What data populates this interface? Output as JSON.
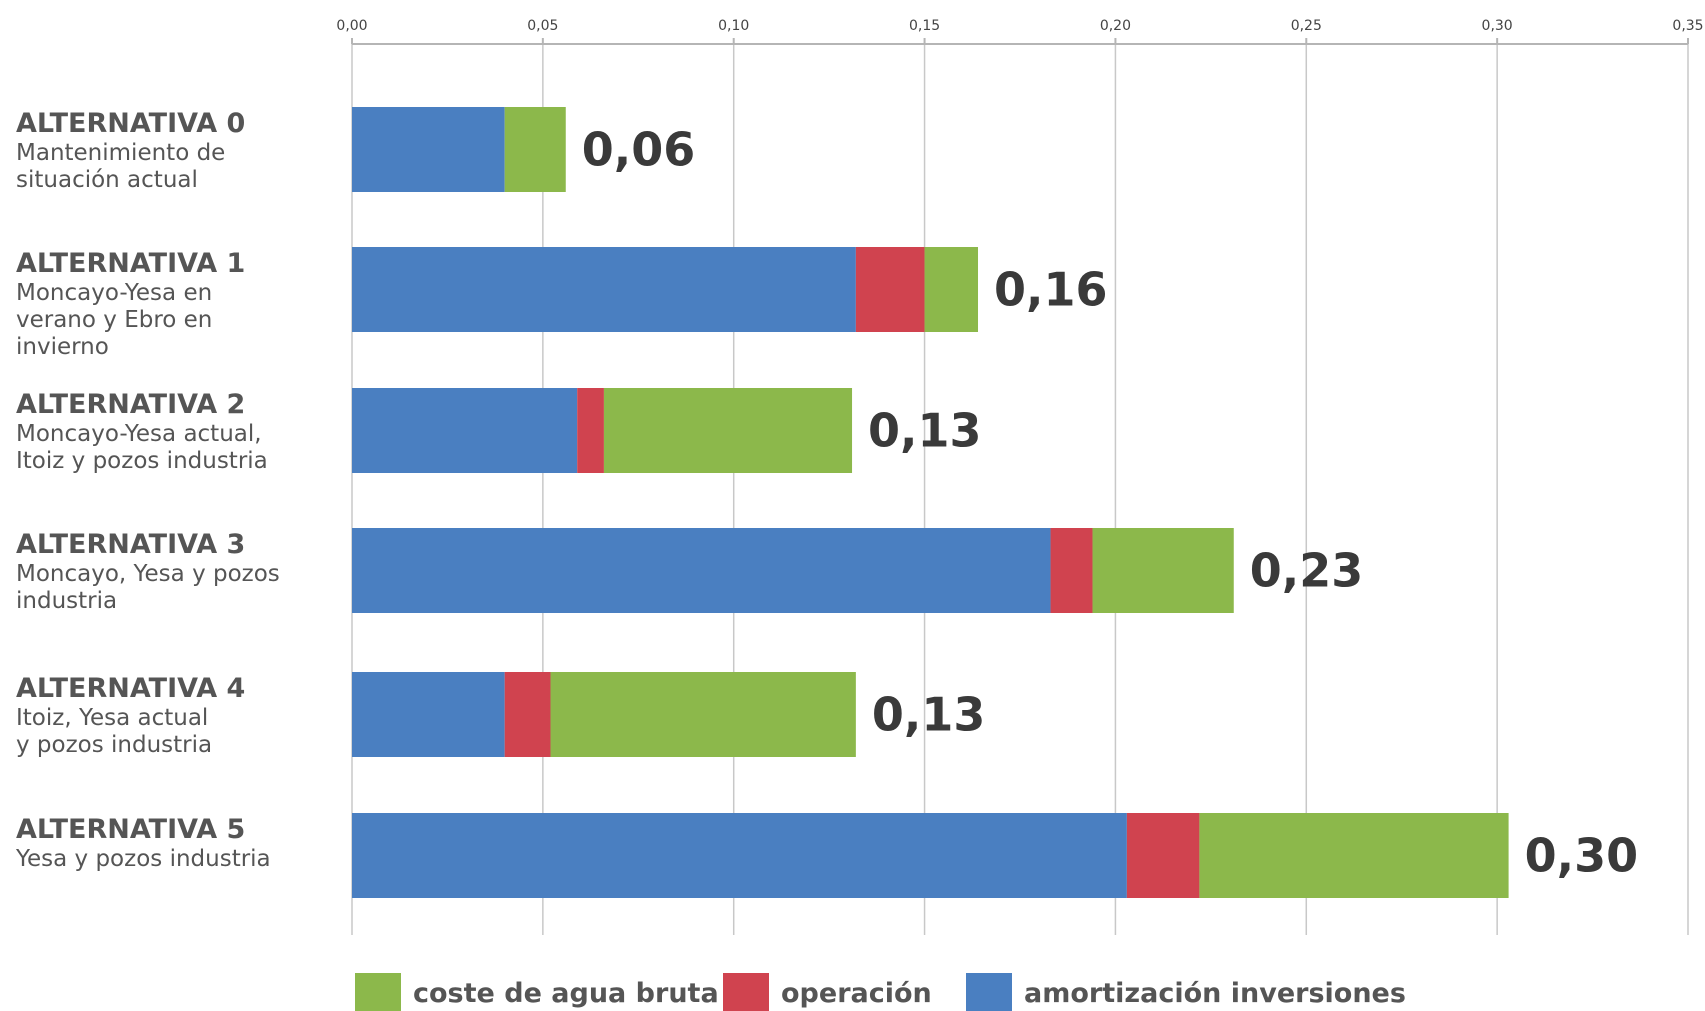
{
  "chart_data": {
    "type": "bar",
    "orientation": "horizontal",
    "stacked": true,
    "xlim": [
      0,
      0.35
    ],
    "x_ticks": [
      "0,00",
      "0,05",
      "0,10",
      "0,15",
      "0,20",
      "0,25",
      "0,30",
      "0,35"
    ],
    "x_tick_values": [
      0,
      0.05,
      0.1,
      0.15,
      0.2,
      0.25,
      0.3,
      0.35
    ],
    "grid": true,
    "legend_position": "bottom",
    "categories": [
      {
        "name": "ALTERNATIVA 0",
        "description": [
          "Mantenimiento de",
          "situación actual"
        ]
      },
      {
        "name": "ALTERNATIVA 1",
        "description": [
          "Moncayo-Yesa en",
          "verano y Ebro en",
          "invierno"
        ]
      },
      {
        "name": "ALTERNATIVA 2",
        "description": [
          "Moncayo-Yesa actual,",
          "Itoiz y pozos industria"
        ]
      },
      {
        "name": "ALTERNATIVA 3",
        "description": [
          "Moncayo, Yesa y pozos",
          "industria"
        ]
      },
      {
        "name": "ALTERNATIVA 4",
        "description": [
          "Itoiz, Yesa actual",
          "y pozos industria"
        ]
      },
      {
        "name": "ALTERNATIVA 5",
        "description": [
          "Yesa y pozos industria"
        ]
      }
    ],
    "series": [
      {
        "name": "amortización inversiones",
        "color": "#4a7fc1",
        "values": [
          0.04,
          0.132,
          0.059,
          0.183,
          0.04,
          0.203
        ]
      },
      {
        "name": "operación",
        "color": "#d0434f",
        "values": [
          0.0,
          0.018,
          0.007,
          0.011,
          0.012,
          0.019
        ]
      },
      {
        "name": "coste de agua bruta",
        "color": "#8cb84b",
        "values": [
          0.016,
          0.014,
          0.065,
          0.037,
          0.08,
          0.081
        ]
      }
    ],
    "totals": [
      "0,06",
      "0,16",
      "0,13",
      "0,23",
      "0,13",
      "0,30"
    ],
    "legend_order": [
      "coste de agua bruta",
      "operación",
      "amortización inversiones"
    ]
  }
}
